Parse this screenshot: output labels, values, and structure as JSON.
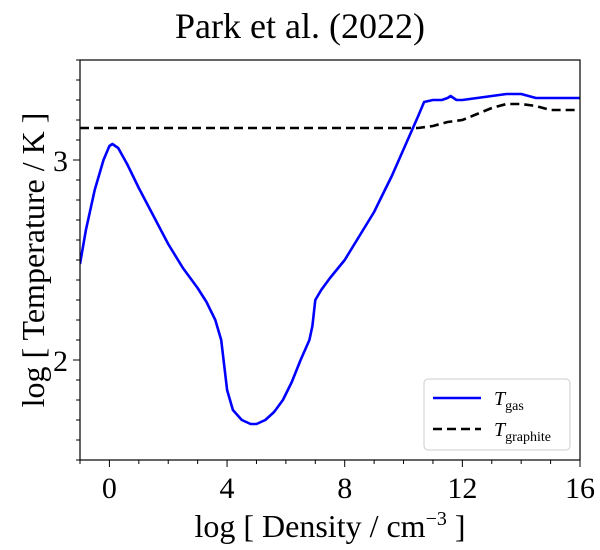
{
  "chart_data": {
    "type": "line",
    "title": "Park et al. (2022)",
    "xlabel": {
      "main": "log [ Density / cm",
      "sup": "−3",
      "end": " ]"
    },
    "ylabel": "log [ Temperature / K ]",
    "xlim": [
      -1,
      16
    ],
    "ylim": [
      1.5,
      3.5
    ],
    "xticks": [
      0,
      4,
      8,
      12,
      16
    ],
    "xtick_labels": [
      "0",
      "4",
      "8",
      "12",
      "16"
    ],
    "yticks": [
      2,
      3
    ],
    "ytick_labels": [
      "2",
      "3"
    ],
    "grid": false,
    "legend_position": "lower-right",
    "series": [
      {
        "name": "T_gas",
        "legend_main": "T",
        "legend_sub": "gas",
        "color": "#0000ff",
        "style": "solid",
        "x": [
          -1.0,
          -0.8,
          -0.5,
          -0.2,
          0.0,
          0.1,
          0.3,
          0.6,
          1.0,
          1.5,
          2.0,
          2.5,
          3.0,
          3.3,
          3.6,
          3.8,
          4.0,
          4.2,
          4.5,
          4.8,
          5.0,
          5.3,
          5.6,
          5.9,
          6.2,
          6.5,
          6.8,
          6.9,
          7.0,
          7.2,
          7.5,
          8.0,
          8.5,
          9.0,
          9.3,
          9.6,
          9.9,
          10.2,
          10.5,
          10.7,
          11.0,
          11.3,
          11.5,
          11.6,
          11.8,
          12.0,
          12.5,
          13.0,
          13.5,
          14.0,
          14.5,
          15.0,
          15.5,
          16.0
        ],
        "y": [
          2.48,
          2.65,
          2.85,
          3.0,
          3.07,
          3.08,
          3.06,
          2.98,
          2.86,
          2.72,
          2.58,
          2.46,
          2.36,
          2.29,
          2.2,
          2.1,
          1.85,
          1.75,
          1.7,
          1.68,
          1.68,
          1.7,
          1.74,
          1.8,
          1.89,
          2.0,
          2.1,
          2.17,
          2.3,
          2.35,
          2.41,
          2.5,
          2.62,
          2.74,
          2.83,
          2.92,
          3.02,
          3.12,
          3.22,
          3.29,
          3.3,
          3.3,
          3.31,
          3.32,
          3.3,
          3.3,
          3.31,
          3.32,
          3.33,
          3.33,
          3.31,
          3.31,
          3.31,
          3.31
        ]
      },
      {
        "name": "T_graphite",
        "legend_main": "T",
        "legend_sub": "graphite",
        "color": "#000000",
        "style": "dashed",
        "x": [
          -1.0,
          0.0,
          2.0,
          4.0,
          6.0,
          8.0,
          9.5,
          10.5,
          11.0,
          11.5,
          12.0,
          12.5,
          13.0,
          13.5,
          14.0,
          14.5,
          15.0,
          15.5,
          16.0
        ],
        "y": [
          3.16,
          3.16,
          3.16,
          3.16,
          3.16,
          3.16,
          3.16,
          3.16,
          3.17,
          3.19,
          3.2,
          3.23,
          3.26,
          3.28,
          3.28,
          3.27,
          3.25,
          3.25,
          3.25
        ]
      }
    ]
  }
}
